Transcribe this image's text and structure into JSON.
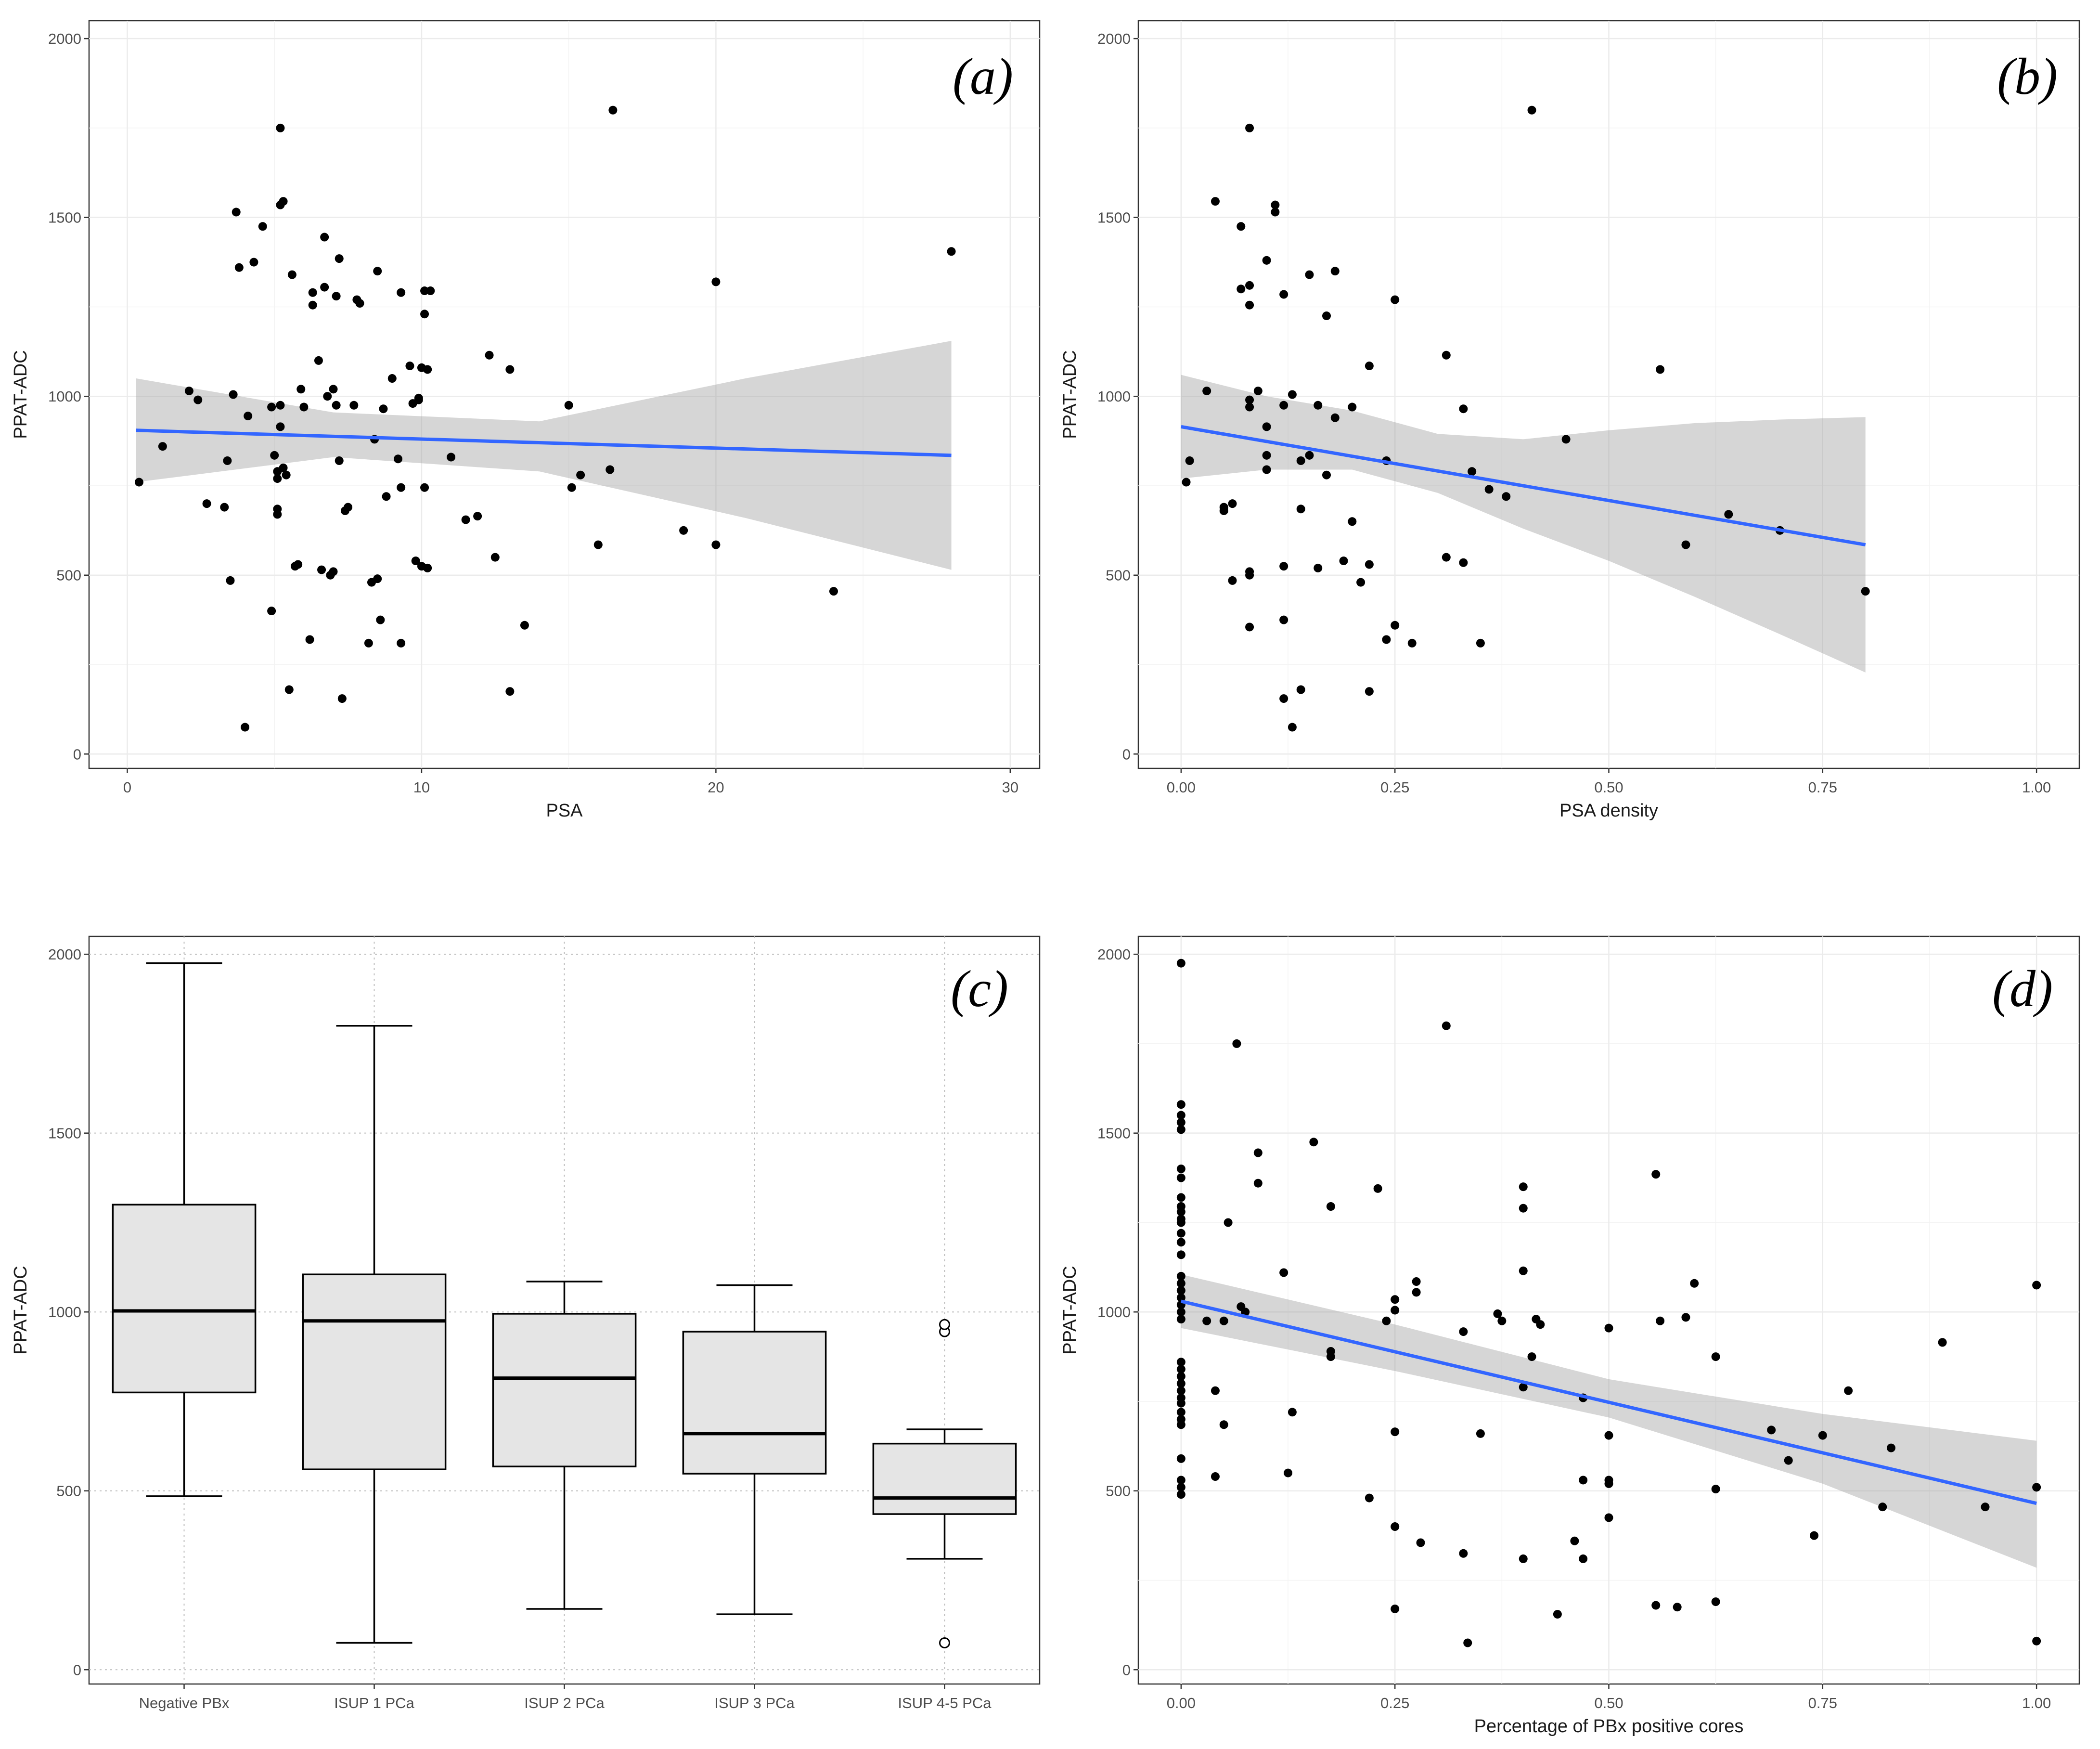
{
  "chart_data": [
    {
      "id": "a",
      "type": "scatter",
      "panel_label": "(a)",
      "xlabel": "PSA",
      "ylabel": "PPAT-ADC",
      "xlim": [
        -1.3,
        31
      ],
      "ylim": [
        -40,
        2050
      ],
      "xticks": [
        0,
        10,
        20,
        30
      ],
      "xtick_labels": [
        "0",
        "10",
        "20",
        "30"
      ],
      "yticks": [
        0,
        500,
        1000,
        1500,
        2000
      ],
      "ytick_labels": [
        "0",
        "500",
        "1000",
        "1500",
        "2000"
      ],
      "points": [
        [
          0.4,
          760
        ],
        [
          1.2,
          860
        ],
        [
          2.1,
          1015
        ],
        [
          2.4,
          990
        ],
        [
          2.7,
          700
        ],
        [
          3.3,
          690
        ],
        [
          3.4,
          820
        ],
        [
          3.5,
          485
        ],
        [
          3.6,
          1005
        ],
        [
          3.7,
          1515
        ],
        [
          3.8,
          1360
        ],
        [
          4,
          75
        ],
        [
          4.1,
          945
        ],
        [
          4.3,
          1375
        ],
        [
          4.6,
          1475
        ],
        [
          4.9,
          970
        ],
        [
          4.9,
          400
        ],
        [
          5,
          835
        ],
        [
          5.1,
          790
        ],
        [
          5.1,
          770
        ],
        [
          5.1,
          685
        ],
        [
          5.1,
          670
        ],
        [
          5.2,
          1750
        ],
        [
          5.2,
          915
        ],
        [
          5.2,
          975
        ],
        [
          5.2,
          1535
        ],
        [
          5.3,
          1545
        ],
        [
          5.3,
          800
        ],
        [
          5.4,
          780
        ],
        [
          5.5,
          180
        ],
        [
          5.6,
          1340
        ],
        [
          5.7,
          525
        ],
        [
          5.8,
          530
        ],
        [
          5.9,
          1020
        ],
        [
          6,
          970
        ],
        [
          6.2,
          320
        ],
        [
          6.3,
          1255
        ],
        [
          6.3,
          1290
        ],
        [
          6.5,
          1100
        ],
        [
          6.6,
          515
        ],
        [
          6.7,
          1445
        ],
        [
          6.7,
          1305
        ],
        [
          6.8,
          1000
        ],
        [
          6.9,
          500
        ],
        [
          7,
          1020
        ],
        [
          7,
          510
        ],
        [
          7.1,
          975
        ],
        [
          7.1,
          1280
        ],
        [
          7.2,
          820
        ],
        [
          7.2,
          1385
        ],
        [
          7.3,
          155
        ],
        [
          7.4,
          680
        ],
        [
          7.5,
          690
        ],
        [
          7.7,
          975
        ],
        [
          7.8,
          1270
        ],
        [
          7.9,
          1260
        ],
        [
          8.2,
          310
        ],
        [
          8.3,
          480
        ],
        [
          8.4,
          880
        ],
        [
          8.5,
          1350
        ],
        [
          8.5,
          490
        ],
        [
          8.6,
          375
        ],
        [
          8.7,
          965
        ],
        [
          8.8,
          720
        ],
        [
          9,
          1050
        ],
        [
          9.2,
          825
        ],
        [
          9.3,
          1290
        ],
        [
          9.3,
          745
        ],
        [
          9.3,
          310
        ],
        [
          9.6,
          1085
        ],
        [
          9.7,
          980
        ],
        [
          9.8,
          540
        ],
        [
          9.9,
          990
        ],
        [
          9.9,
          995
        ],
        [
          10,
          525
        ],
        [
          10,
          1080
        ],
        [
          10.1,
          1230
        ],
        [
          10.1,
          1295
        ],
        [
          10.1,
          745
        ],
        [
          10.2,
          1075
        ],
        [
          10.2,
          520
        ],
        [
          10.3,
          1295
        ],
        [
          11,
          830
        ],
        [
          11.5,
          655
        ],
        [
          11.9,
          665
        ],
        [
          12.3,
          1115
        ],
        [
          12.5,
          550
        ],
        [
          13,
          1075
        ],
        [
          13,
          175
        ],
        [
          13.5,
          360
        ],
        [
          15,
          975
        ],
        [
          15.1,
          745
        ],
        [
          15.4,
          780
        ],
        [
          16,
          585
        ],
        [
          16.4,
          795
        ],
        [
          16.5,
          1800
        ],
        [
          18.9,
          625
        ],
        [
          20,
          1320
        ],
        [
          20,
          585
        ],
        [
          24,
          455
        ],
        [
          28,
          1405
        ]
      ],
      "fit": {
        "x": [
          0.3,
          28
        ],
        "y": [
          905,
          835
        ],
        "band_x": [
          0.3,
          7,
          14,
          21,
          28
        ],
        "band_lower": [
          760,
          830,
          790,
          660,
          515
        ],
        "band_upper": [
          1050,
          955,
          930,
          1050,
          1155
        ]
      }
    },
    {
      "id": "b",
      "type": "scatter",
      "panel_label": "(b)",
      "xlabel": "PSA density",
      "ylabel": "PPAT-ADC",
      "xlim": [
        -0.05,
        1.05
      ],
      "ylim": [
        -40,
        2050
      ],
      "xticks": [
        0,
        0.25,
        0.5,
        0.75,
        1
      ],
      "xtick_labels": [
        "0.00",
        "0.25",
        "0.50",
        "0.75",
        "1.00"
      ],
      "yticks": [
        0,
        500,
        1000,
        1500,
        2000
      ],
      "ytick_labels": [
        "0",
        "500",
        "1000",
        "1500",
        "2000"
      ],
      "points": [
        [
          0.006,
          760
        ],
        [
          0.01,
          820
        ],
        [
          0.03,
          1015
        ],
        [
          0.04,
          1545
        ],
        [
          0.05,
          690
        ],
        [
          0.05,
          680
        ],
        [
          0.06,
          700
        ],
        [
          0.06,
          485
        ],
        [
          0.07,
          1475
        ],
        [
          0.07,
          1300
        ],
        [
          0.08,
          1750
        ],
        [
          0.08,
          1310
        ],
        [
          0.08,
          1255
        ],
        [
          0.08,
          990
        ],
        [
          0.08,
          970
        ],
        [
          0.08,
          510
        ],
        [
          0.08,
          500
        ],
        [
          0.08,
          355
        ],
        [
          0.09,
          1015
        ],
        [
          0.1,
          1380
        ],
        [
          0.1,
          915
        ],
        [
          0.1,
          835
        ],
        [
          0.1,
          795
        ],
        [
          0.11,
          1535
        ],
        [
          0.11,
          1515
        ],
        [
          0.12,
          1285
        ],
        [
          0.12,
          975
        ],
        [
          0.12,
          525
        ],
        [
          0.12,
          375
        ],
        [
          0.12,
          155
        ],
        [
          0.13,
          1005
        ],
        [
          0.13,
          75
        ],
        [
          0.14,
          820
        ],
        [
          0.14,
          685
        ],
        [
          0.14,
          180
        ],
        [
          0.15,
          1340
        ],
        [
          0.15,
          835
        ],
        [
          0.16,
          975
        ],
        [
          0.16,
          520
        ],
        [
          0.17,
          1225
        ],
        [
          0.17,
          780
        ],
        [
          0.18,
          1350
        ],
        [
          0.18,
          940
        ],
        [
          0.19,
          540
        ],
        [
          0.2,
          970
        ],
        [
          0.2,
          650
        ],
        [
          0.21,
          480
        ],
        [
          0.22,
          1085
        ],
        [
          0.22,
          530
        ],
        [
          0.22,
          175
        ],
        [
          0.24,
          820
        ],
        [
          0.24,
          320
        ],
        [
          0.25,
          1270
        ],
        [
          0.25,
          360
        ],
        [
          0.27,
          310
        ],
        [
          0.31,
          1115
        ],
        [
          0.31,
          550
        ],
        [
          0.33,
          965
        ],
        [
          0.33,
          535
        ],
        [
          0.34,
          790
        ],
        [
          0.35,
          310
        ],
        [
          0.36,
          740
        ],
        [
          0.38,
          720
        ],
        [
          0.41,
          1800
        ],
        [
          0.45,
          880
        ],
        [
          0.56,
          1075
        ],
        [
          0.59,
          585
        ],
        [
          0.64,
          670
        ],
        [
          0.7,
          625
        ],
        [
          0.8,
          455
        ]
      ],
      "fit": {
        "x": [
          0,
          0.8
        ],
        "y": [
          915,
          585
        ],
        "band_x": [
          0,
          0.1,
          0.2,
          0.3,
          0.4,
          0.5,
          0.6,
          0.7,
          0.8
        ],
        "band_lower": [
          770,
          795,
          795,
          730,
          630,
          540,
          440,
          335,
          228
        ],
        "band_upper": [
          1060,
          1000,
          960,
          895,
          880,
          905,
          925,
          935,
          942
        ]
      }
    },
    {
      "id": "c",
      "type": "box",
      "panel_label": "(c)",
      "xlabel": "",
      "ylabel": "PPAT-ADC",
      "ylim": [
        -40,
        2050
      ],
      "yticks": [
        0,
        500,
        1000,
        1500,
        2000
      ],
      "ytick_labels": [
        "0",
        "500",
        "1000",
        "1500",
        "2000"
      ],
      "categories": [
        "Negative PBx",
        "ISUP 1 PCa",
        "ISUP 2 PCa",
        "ISUP 3 PCa",
        "ISUP 4-5 PCa"
      ],
      "boxes": [
        {
          "min": 485,
          "q1": 775,
          "median": 1003,
          "q3": 1300,
          "max": 1975,
          "outliers": []
        },
        {
          "min": 75,
          "q1": 560,
          "median": 975,
          "q3": 1105,
          "max": 1800,
          "outliers": []
        },
        {
          "min": 170,
          "q1": 568,
          "median": 815,
          "q3": 995,
          "max": 1085,
          "outliers": []
        },
        {
          "min": 155,
          "q1": 548,
          "median": 660,
          "q3": 945,
          "max": 1075,
          "outliers": []
        },
        {
          "min": 310,
          "q1": 435,
          "median": 480,
          "q3": 632,
          "max": 672,
          "outliers": [
            75,
            945,
            965
          ]
        }
      ]
    },
    {
      "id": "d",
      "type": "scatter",
      "panel_label": "(d)",
      "xlabel": "Percentage of PBx positive cores",
      "ylabel": "PPAT-ADC",
      "xlim": [
        -0.05,
        1.05
      ],
      "ylim": [
        -40,
        2050
      ],
      "xticks": [
        0,
        0.25,
        0.5,
        0.75,
        1
      ],
      "xtick_labels": [
        "0.00",
        "0.25",
        "0.50",
        "0.75",
        "1.00"
      ],
      "yticks": [
        0,
        500,
        1000,
        1500,
        2000
      ],
      "ytick_labels": [
        "0",
        "500",
        "1000",
        "1500",
        "2000"
      ],
      "points": [
        [
          0,
          1975
        ],
        [
          0,
          1580
        ],
        [
          0,
          1550
        ],
        [
          0,
          1530
        ],
        [
          0,
          1510
        ],
        [
          0,
          1400
        ],
        [
          0,
          1375
        ],
        [
          0,
          1320
        ],
        [
          0,
          1295
        ],
        [
          0,
          1280
        ],
        [
          0,
          1260
        ],
        [
          0,
          1250
        ],
        [
          0,
          1220
        ],
        [
          0,
          1195
        ],
        [
          0,
          1160
        ],
        [
          0,
          1100
        ],
        [
          0,
          1080
        ],
        [
          0,
          1060
        ],
        [
          0,
          1040
        ],
        [
          0,
          1020
        ],
        [
          0,
          1000
        ],
        [
          0,
          980
        ],
        [
          0,
          860
        ],
        [
          0,
          840
        ],
        [
          0,
          820
        ],
        [
          0,
          800
        ],
        [
          0,
          780
        ],
        [
          0,
          760
        ],
        [
          0,
          745
        ],
        [
          0,
          720
        ],
        [
          0,
          700
        ],
        [
          0,
          685
        ],
        [
          0,
          590
        ],
        [
          0,
          530
        ],
        [
          0,
          510
        ],
        [
          0,
          490
        ],
        [
          0.03,
          975
        ],
        [
          0.04,
          540
        ],
        [
          0.04,
          780
        ],
        [
          0.05,
          685
        ],
        [
          0.05,
          975
        ],
        [
          0.055,
          1250
        ],
        [
          0.065,
          1750
        ],
        [
          0.07,
          1015
        ],
        [
          0.075,
          1000
        ],
        [
          0.09,
          1445
        ],
        [
          0.09,
          1360
        ],
        [
          0.12,
          1110
        ],
        [
          0.125,
          550
        ],
        [
          0.13,
          720
        ],
        [
          0.155,
          1475
        ],
        [
          0.175,
          1295
        ],
        [
          0.175,
          890
        ],
        [
          0.175,
          875
        ],
        [
          0.22,
          480
        ],
        [
          0.23,
          1345
        ],
        [
          0.24,
          975
        ],
        [
          0.25,
          1035
        ],
        [
          0.25,
          1005
        ],
        [
          0.25,
          665
        ],
        [
          0.25,
          400
        ],
        [
          0.25,
          170
        ],
        [
          0.275,
          1085
        ],
        [
          0.275,
          1055
        ],
        [
          0.28,
          355
        ],
        [
          0.31,
          1800
        ],
        [
          0.33,
          945
        ],
        [
          0.33,
          325
        ],
        [
          0.335,
          75
        ],
        [
          0.35,
          660
        ],
        [
          0.37,
          995
        ],
        [
          0.375,
          975
        ],
        [
          0.4,
          1350
        ],
        [
          0.4,
          1290
        ],
        [
          0.4,
          1115
        ],
        [
          0.4,
          790
        ],
        [
          0.4,
          310
        ],
        [
          0.41,
          875
        ],
        [
          0.415,
          980
        ],
        [
          0.42,
          965
        ],
        [
          0.44,
          155
        ],
        [
          0.46,
          360
        ],
        [
          0.47,
          310
        ],
        [
          0.47,
          760
        ],
        [
          0.47,
          530
        ],
        [
          0.5,
          955
        ],
        [
          0.5,
          655
        ],
        [
          0.5,
          530
        ],
        [
          0.5,
          520
        ],
        [
          0.5,
          425
        ],
        [
          0.555,
          1385
        ],
        [
          0.555,
          180
        ],
        [
          0.56,
          975
        ],
        [
          0.58,
          175
        ],
        [
          0.59,
          985
        ],
        [
          0.6,
          1080
        ],
        [
          0.625,
          875
        ],
        [
          0.625,
          505
        ],
        [
          0.625,
          190
        ],
        [
          0.69,
          670
        ],
        [
          0.71,
          585
        ],
        [
          0.74,
          375
        ],
        [
          0.75,
          655
        ],
        [
          0.78,
          780
        ],
        [
          0.82,
          455
        ],
        [
          0.83,
          620
        ],
        [
          0.89,
          915
        ],
        [
          0.94,
          455
        ],
        [
          1,
          1075
        ],
        [
          1,
          510
        ],
        [
          1,
          80
        ]
      ],
      "fit": {
        "x": [
          0,
          1
        ],
        "y": [
          1030,
          465
        ],
        "band_x": [
          0,
          0.25,
          0.5,
          0.75,
          1
        ],
        "band_lower": [
          955,
          835,
          705,
          520,
          285
        ],
        "band_upper": [
          1105,
          965,
          812,
          715,
          640
        ]
      }
    }
  ]
}
